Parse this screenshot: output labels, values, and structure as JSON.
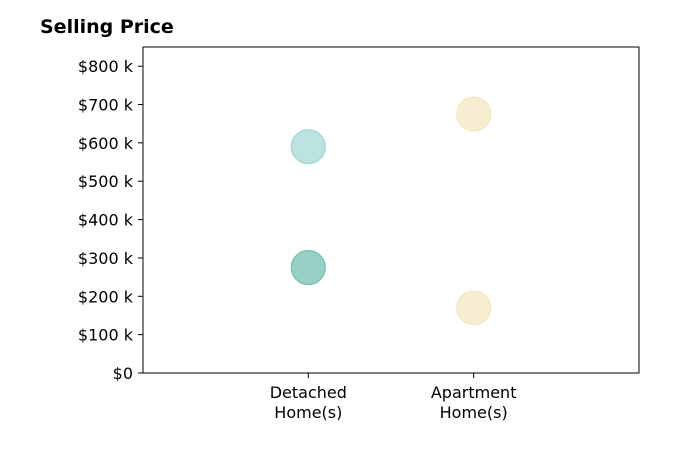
{
  "chart_data": {
    "type": "scatter",
    "title": "Selling Price",
    "xlabel": "",
    "ylabel": "",
    "categories": [
      [
        "Detached",
        "Home(s)"
      ],
      [
        "Apartment",
        "Home(s)"
      ]
    ],
    "xlim": [
      -1,
      2
    ],
    "ylim": [
      0,
      850000
    ],
    "y_ticks": [
      {
        "value": 0,
        "label": "$0"
      },
      {
        "value": 100000,
        "label": "$100 k"
      },
      {
        "value": 200000,
        "label": "$200 k"
      },
      {
        "value": 300000,
        "label": "$300 k"
      },
      {
        "value": 400000,
        "label": "$400 k"
      },
      {
        "value": 500000,
        "label": "$500 k"
      },
      {
        "value": 600000,
        "label": "$600 k"
      },
      {
        "value": 700000,
        "label": "$700 k"
      },
      {
        "value": 800000,
        "label": "$800 k"
      }
    ],
    "points": [
      {
        "category": 0,
        "y": 590000,
        "color": "#8fd0c9",
        "opacity": 0.6
      },
      {
        "category": 0,
        "y": 275000,
        "color": "#5fb8a6",
        "opacity": 0.65
      },
      {
        "category": 1,
        "y": 675000,
        "color": "#f5e2b8",
        "opacity": 0.65
      },
      {
        "category": 1,
        "y": 170000,
        "color": "#f5e2b8",
        "opacity": 0.65
      }
    ],
    "grid": false,
    "legend": "none"
  }
}
